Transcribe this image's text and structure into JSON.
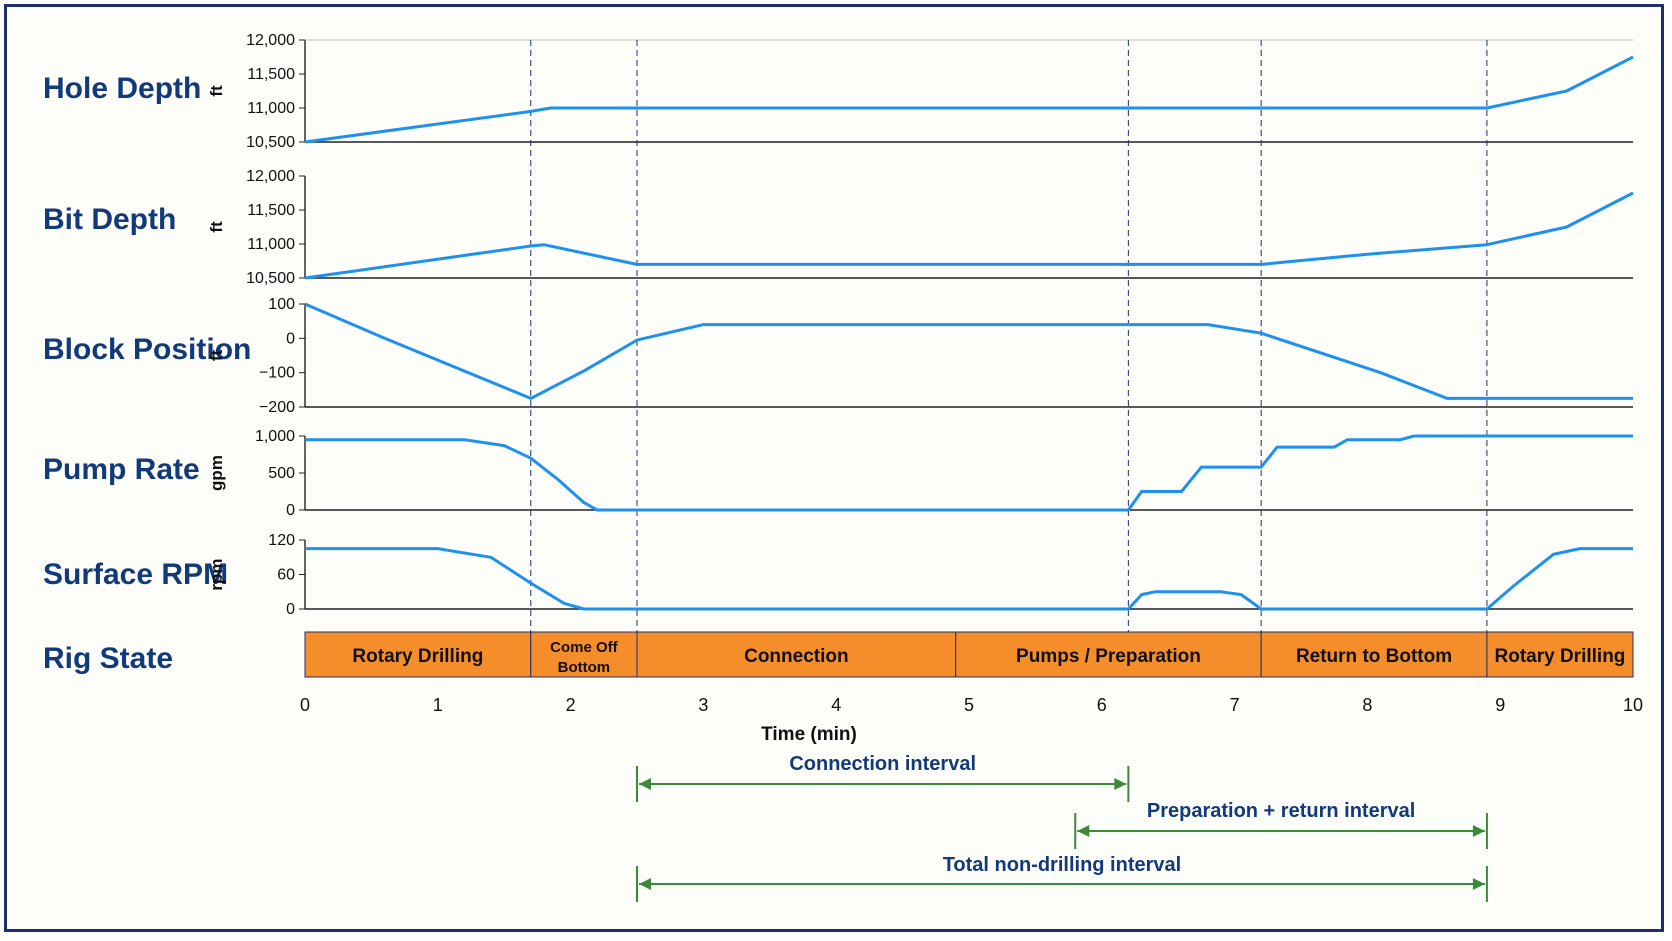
{
  "chart_data": {
    "type": "line",
    "xlabel": "Time (min)",
    "x_ticks": [
      "0",
      "1",
      "2",
      "3",
      "4",
      "5",
      "6",
      "7",
      "8",
      "9",
      "10"
    ],
    "xlim": [
      0,
      10
    ],
    "event_lines": [
      1.7,
      2.5,
      6.2,
      7.2,
      8.9
    ],
    "colors": {
      "series": "#1e90ee",
      "state_fill": "#f58d2a",
      "interval": "#3a8a3a",
      "label": "#123a7a",
      "frame": "#1e2f6e"
    },
    "panels": [
      {
        "id": "hole-depth",
        "label": "Hole Depth",
        "unit": "ft",
        "ylim": [
          10500,
          12000
        ],
        "y_ticks": [
          {
            "v": 12000,
            "t": "12,000"
          },
          {
            "v": 11500,
            "t": "11,500"
          },
          {
            "v": 11000,
            "t": "11,000"
          },
          {
            "v": 10500,
            "t": "10,500"
          }
        ],
        "x": [
          0,
          1.7,
          1.85,
          8.9,
          9.5,
          10
        ],
        "y": [
          10500,
          10950,
          11000,
          11000,
          11250,
          11750
        ]
      },
      {
        "id": "bit-depth",
        "label": "Bit Depth",
        "unit": "ft",
        "ylim": [
          10500,
          12000
        ],
        "y_ticks": [
          {
            "v": 12000,
            "t": "12,000"
          },
          {
            "v": 11500,
            "t": "11,500"
          },
          {
            "v": 11000,
            "t": "11,000"
          },
          {
            "v": 10500,
            "t": "10,500"
          }
        ],
        "x": [
          0,
          1.7,
          1.8,
          2.5,
          7.2,
          8.0,
          8.9,
          9.5,
          10
        ],
        "y": [
          10500,
          10970,
          10990,
          10700,
          10700,
          10850,
          10990,
          11250,
          11750
        ]
      },
      {
        "id": "block-position",
        "label": "Block Position",
        "unit": "ft",
        "ylim": [
          -200,
          100
        ],
        "y_ticks": [
          {
            "v": 100,
            "t": "100"
          },
          {
            "v": 0,
            "t": "0"
          },
          {
            "v": -100,
            "t": "−100"
          },
          {
            "v": -200,
            "t": "−200"
          }
        ],
        "x": [
          0,
          0.6,
          1.7,
          2.1,
          2.5,
          3.0,
          6.8,
          7.2,
          8.1,
          8.6,
          10
        ],
        "y": [
          100,
          0,
          -175,
          -95,
          -5,
          40,
          40,
          15,
          -100,
          -175,
          -175
        ]
      },
      {
        "id": "pump-rate",
        "label": "Pump Rate",
        "unit": "gpm",
        "ylim": [
          0,
          1000
        ],
        "y_ticks": [
          {
            "v": 1000,
            "t": "1,000"
          },
          {
            "v": 500,
            "t": "500"
          },
          {
            "v": 0,
            "t": "0"
          }
        ],
        "x": [
          0,
          1.2,
          1.5,
          1.7,
          1.9,
          2.1,
          2.2,
          6.2,
          6.3,
          6.6,
          6.75,
          7.2,
          7.32,
          7.75,
          7.85,
          8.25,
          8.35,
          10
        ],
        "y": [
          950,
          950,
          870,
          700,
          420,
          100,
          0,
          0,
          250,
          250,
          580,
          580,
          850,
          850,
          950,
          950,
          1000,
          1000
        ]
      },
      {
        "id": "surface-rpm",
        "label": "Surface RPM",
        "unit": "rpm",
        "ylim": [
          0,
          120
        ],
        "y_ticks": [
          {
            "v": 120,
            "t": "120"
          },
          {
            "v": 60,
            "t": "60"
          },
          {
            "v": 0,
            "t": "0"
          }
        ],
        "x": [
          0,
          1.0,
          1.4,
          1.7,
          1.95,
          2.1,
          6.2,
          6.3,
          6.4,
          6.9,
          7.05,
          7.2,
          8.9,
          9.1,
          9.4,
          9.6,
          10
        ],
        "y": [
          105,
          105,
          90,
          45,
          10,
          0,
          0,
          25,
          30,
          30,
          25,
          0,
          0,
          40,
          95,
          105,
          105
        ]
      }
    ],
    "rig_state": {
      "label": "Rig State",
      "segments": [
        {
          "name": "Rotary Drilling",
          "start": 0,
          "end": 1.7
        },
        {
          "name": "Come Off Bottom",
          "lines": [
            "Come Off",
            "Bottom"
          ],
          "start": 1.7,
          "end": 2.5
        },
        {
          "name": "Connection",
          "start": 2.5,
          "end": 4.9
        },
        {
          "name": "Pumps / Preparation",
          "start": 4.9,
          "end": 7.2
        },
        {
          "name": "Return to Bottom",
          "start": 7.2,
          "end": 8.9
        },
        {
          "name": "Rotary Drilling",
          "start": 8.9,
          "end": 10
        }
      ]
    },
    "intervals": [
      {
        "name": "Connection interval",
        "start": 2.5,
        "end": 6.2
      },
      {
        "name": "Preparation + return interval",
        "start": 5.8,
        "end": 8.9
      },
      {
        "name": "Total non-drilling interval",
        "start": 2.5,
        "end": 8.9
      }
    ]
  }
}
